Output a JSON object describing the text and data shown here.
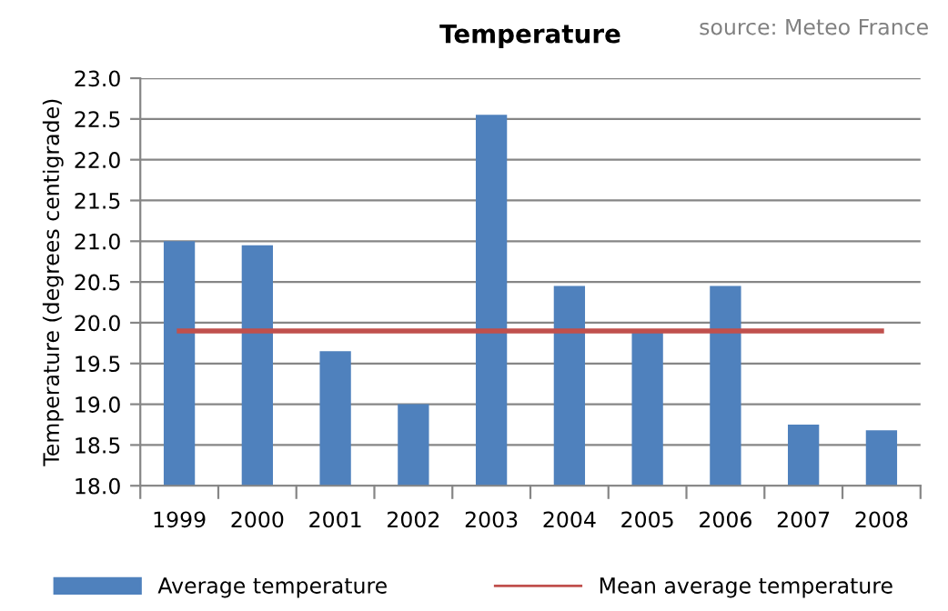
{
  "chart_data": {
    "type": "bar",
    "title": "Temperature",
    "ylabel": "Temperature (degrees centigrade)",
    "annotations": [
      "source: Meteo France"
    ],
    "categories": [
      "1999",
      "2000",
      "2001",
      "2002",
      "2003",
      "2004",
      "2005",
      "2006",
      "2007",
      "2008"
    ],
    "series": [
      {
        "name": "Average temperature",
        "color": "#4f81bd",
        "values": [
          21.0,
          20.95,
          19.65,
          19.0,
          22.55,
          20.45,
          19.9,
          20.45,
          18.75,
          18.68
        ]
      },
      {
        "name": "Mean average temperature",
        "type": "line",
        "color": "#c0504d",
        "values": [
          19.9,
          19.9,
          19.9,
          19.9,
          19.9,
          19.9,
          19.9,
          19.9,
          19.9,
          19.9
        ]
      }
    ],
    "ylim": [
      18.0,
      23.0
    ],
    "yticks": [
      {
        "value": 18.0,
        "label": "18.0"
      },
      {
        "value": 18.5,
        "label": "18.5"
      },
      {
        "value": 19.0,
        "label": "19.0"
      },
      {
        "value": 19.5,
        "label": "19.5"
      },
      {
        "value": 20.0,
        "label": "20.0"
      },
      {
        "value": 20.5,
        "label": "20.5"
      },
      {
        "value": 21.0,
        "label": "21.0"
      },
      {
        "value": 21.5,
        "label": "21.5"
      },
      {
        "value": 22.0,
        "label": "22.0"
      },
      {
        "value": 22.5,
        "label": "22.5"
      },
      {
        "value": 23.0,
        "label": "23.0"
      }
    ],
    "grid": "y",
    "legend": "bottom",
    "marker": "none",
    "line_style": "solid"
  }
}
